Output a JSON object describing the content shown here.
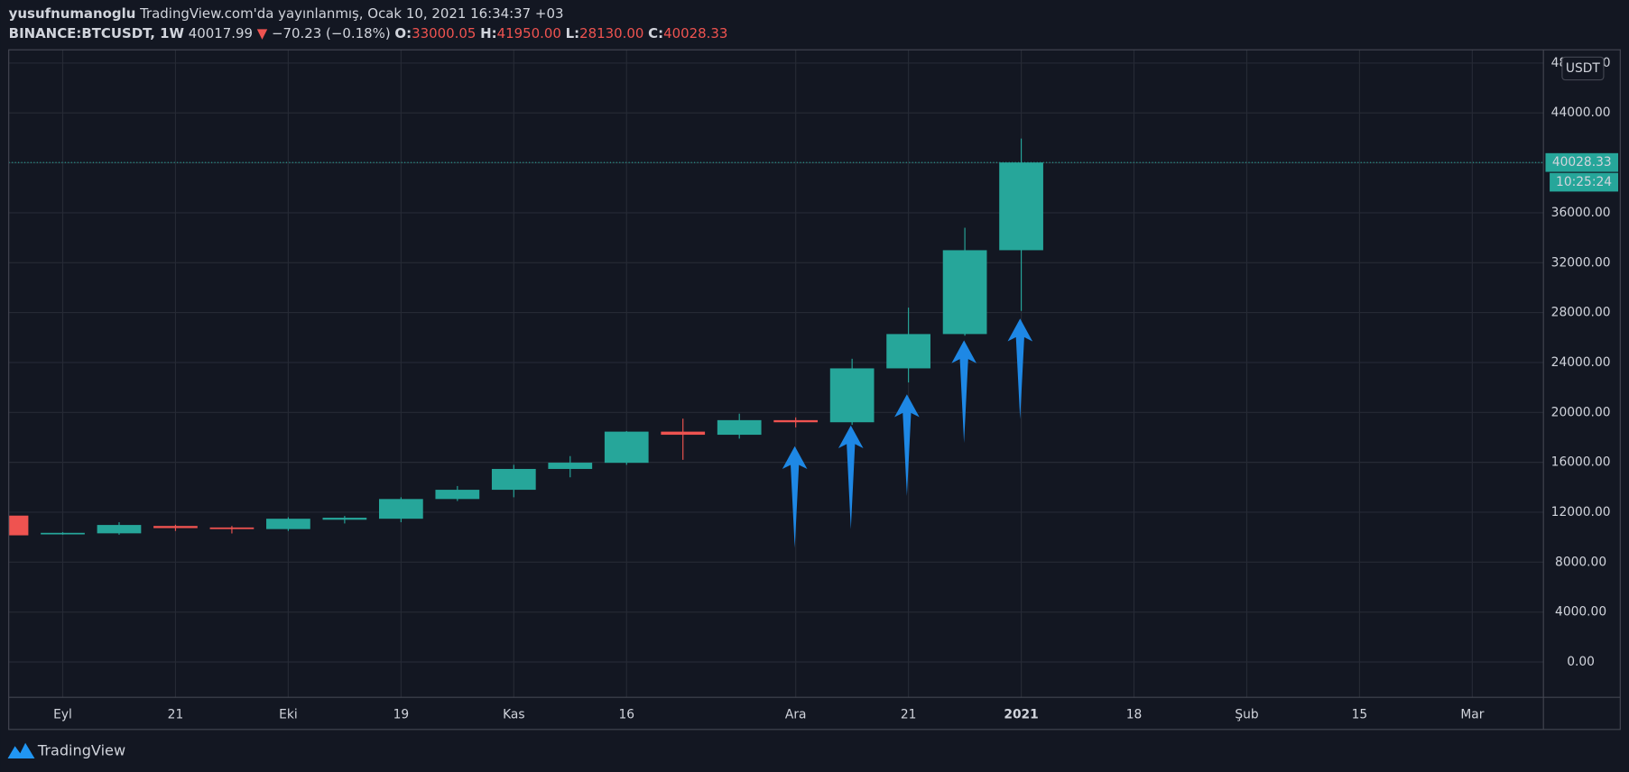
{
  "header": {
    "author": "yusufnumanoglu",
    "published": "TradingView.com'da yayınlanmış, Ocak 10, 2021 16:34:37 +03",
    "symbol": "BINANCE:BTCUSDT, 1W",
    "price": "40017.99",
    "arrow": "▼",
    "change": "−70.23 (−0.18%)",
    "ohlc": [
      {
        "label": "O:",
        "value": "33000.05"
      },
      {
        "label": "H:",
        "value": "41950.00"
      },
      {
        "label": "L:",
        "value": "28130.00"
      },
      {
        "label": "C:",
        "value": "40028.33"
      }
    ]
  },
  "footer": {
    "brand": "TradingView"
  },
  "chart_data": {
    "type": "candlestick",
    "currency": "USDT",
    "countdown": "10:25:24",
    "up_color": "#26a69a",
    "down_color": "#ef5350",
    "grid": true,
    "categories": [
      null,
      "Eyl",
      null,
      "21",
      null,
      "Eki",
      null,
      "19",
      null,
      "Kas",
      null,
      "16",
      null,
      null,
      "Ara",
      null,
      "21",
      null,
      "2021",
      null,
      "18",
      null,
      "Şub",
      null,
      "15",
      null,
      "Mar"
    ],
    "open": [
      11730,
      10250,
      10310,
      10900,
      10780,
      10650,
      11400,
      11480,
      13060,
      13800,
      15470,
      15960,
      18460,
      18210,
      19380,
      19210,
      23530,
      26280,
      33000.05,
      null,
      null,
      null,
      null,
      null,
      null,
      null,
      null
    ],
    "high": [
      11800,
      10400,
      11200,
      11000,
      10900,
      11600,
      11700,
      13200,
      14100,
      15800,
      16500,
      18500,
      19500,
      19900,
      19600,
      24300,
      28400,
      34800,
      41950,
      null,
      null,
      null,
      null,
      null,
      null,
      null,
      null
    ],
    "low": [
      10100,
      10200,
      10200,
      10500,
      10300,
      10500,
      11100,
      11200,
      12900,
      13200,
      14800,
      15800,
      16200,
      17900,
      18800,
      19000,
      22400,
      26150,
      28130,
      null,
      null,
      null,
      null,
      null,
      null,
      null,
      null
    ],
    "close": [
      10150,
      10350,
      10980,
      10730,
      10650,
      11480,
      11560,
      13060,
      13800,
      15470,
      15970,
      18460,
      18210,
      19380,
      19210,
      23530,
      26280,
      33000,
      40028.33,
      null,
      null,
      null,
      null,
      null,
      null,
      null,
      null
    ],
    "ylim": [
      -2830,
      49060
    ],
    "yticks": [
      {
        "value": 0,
        "label": "0.00"
      },
      {
        "value": 4000,
        "label": "4000.00"
      },
      {
        "value": 8000,
        "label": "8000.00"
      },
      {
        "value": 12000,
        "label": "12000.00"
      },
      {
        "value": 16000,
        "label": "16000.00"
      },
      {
        "value": 20000,
        "label": "20000.00"
      },
      {
        "value": 24000,
        "label": "24000.00"
      },
      {
        "value": 28000,
        "label": "28000.00"
      },
      {
        "value": 32000,
        "label": "32000.00"
      },
      {
        "value": 36000,
        "label": "36000.00"
      },
      {
        "value": 40000,
        "label": "40000.00"
      },
      {
        "value": 44000,
        "label": "44000.00"
      },
      {
        "value": 48000,
        "label": "48000.00"
      }
    ]
  }
}
